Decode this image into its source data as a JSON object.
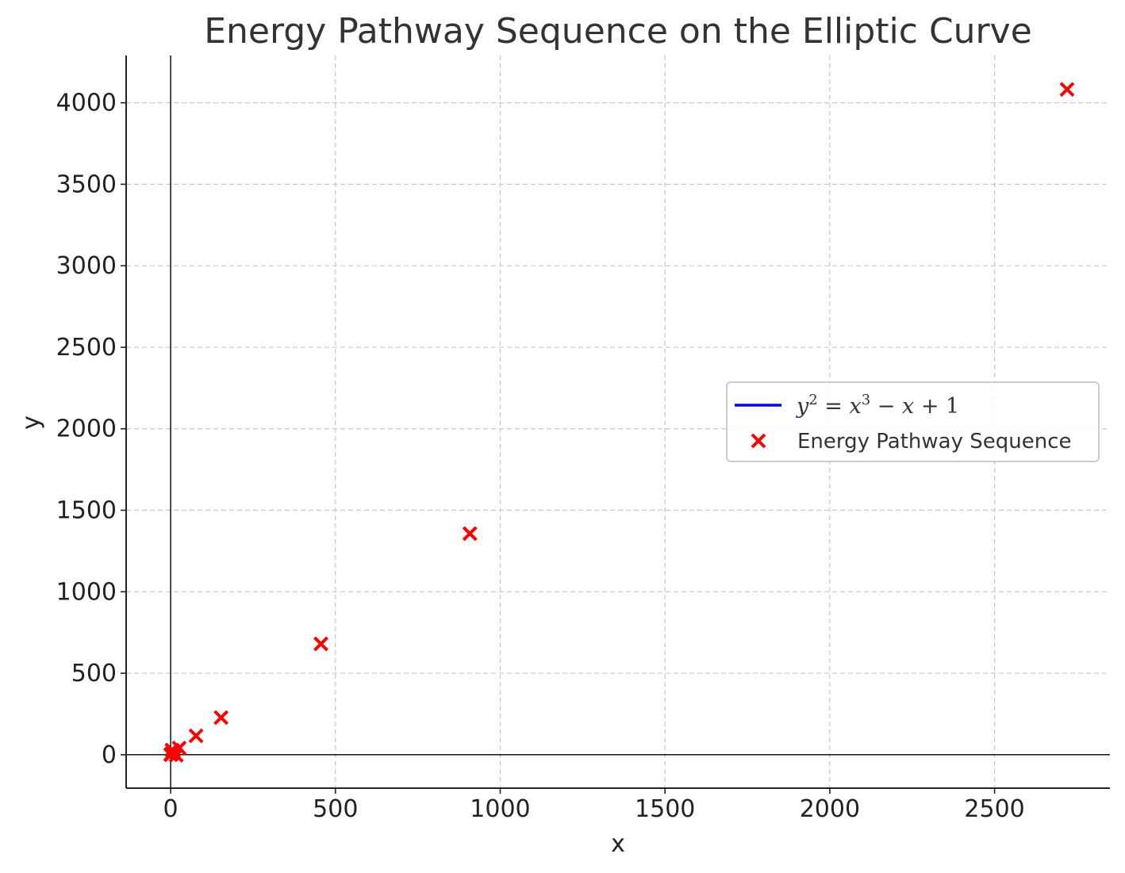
{
  "chart_data": {
    "type": "scatter",
    "title": "Energy Pathway Sequence on the Elliptic Curve",
    "xlabel": "x",
    "ylabel": "y",
    "xlim": [
      -135,
      2850
    ],
    "ylim": [
      -205,
      4290
    ],
    "xticks": [
      0,
      500,
      1000,
      1500,
      2000,
      2500
    ],
    "yticks": [
      0,
      500,
      1000,
      1500,
      2000,
      2500,
      3000,
      3500,
      4000
    ],
    "grid": true,
    "legend_position": "center-right",
    "series": [
      {
        "name": "y^2 = x^3 - x + 1",
        "kind": "line",
        "color": "#0000ff",
        "points": []
      },
      {
        "name": "Energy Pathway Sequence",
        "kind": "scatter",
        "marker": "x",
        "color": "#ff0000",
        "points": [
          {
            "x": 0,
            "y": 1
          },
          {
            "x": 1,
            "y": 1
          },
          {
            "x": 3,
            "y": 5
          },
          {
            "x": 5,
            "y": 11
          },
          {
            "x": 4,
            "y": 29
          },
          {
            "x": 8,
            "y": 22
          },
          {
            "x": 17,
            "y": -3
          },
          {
            "x": 26,
            "y": 41
          },
          {
            "x": 77,
            "y": 116
          },
          {
            "x": 153,
            "y": 228
          },
          {
            "x": 456,
            "y": 680
          },
          {
            "x": 908,
            "y": 1357
          },
          {
            "x": 2720,
            "y": 4082
          }
        ]
      }
    ]
  },
  "legend": {
    "curve_label": "y² = x³ − x + 1",
    "scatter_label": "Energy Pathway Sequence"
  }
}
